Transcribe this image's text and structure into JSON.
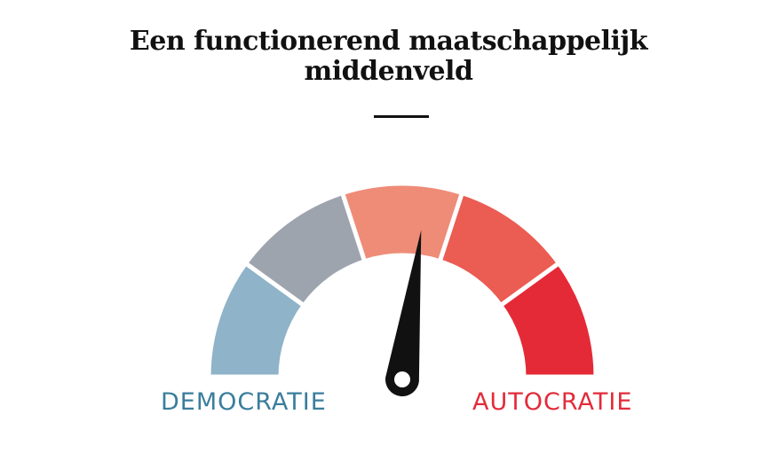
{
  "title": {
    "line1": "Een functionerend maatschappelijk",
    "line2": "middenveld"
  },
  "gauge": {
    "segments": [
      {
        "name": "segment-1",
        "color": "#8fb3c8"
      },
      {
        "name": "segment-2",
        "color": "#9ea4ae"
      },
      {
        "name": "segment-3",
        "color": "#ee8c78"
      },
      {
        "name": "segment-4",
        "color": "#eb5c52"
      },
      {
        "name": "segment-5",
        "color": "#e52a37"
      }
    ],
    "needle_value": 0.54,
    "needle_color": "#111111",
    "divider_color": "#ffffff"
  },
  "labels": {
    "left": "DEMOCRATIE",
    "left_color": "#3a7d9c",
    "right": "AUTOCRATIE",
    "right_color": "#e22b3a"
  }
}
